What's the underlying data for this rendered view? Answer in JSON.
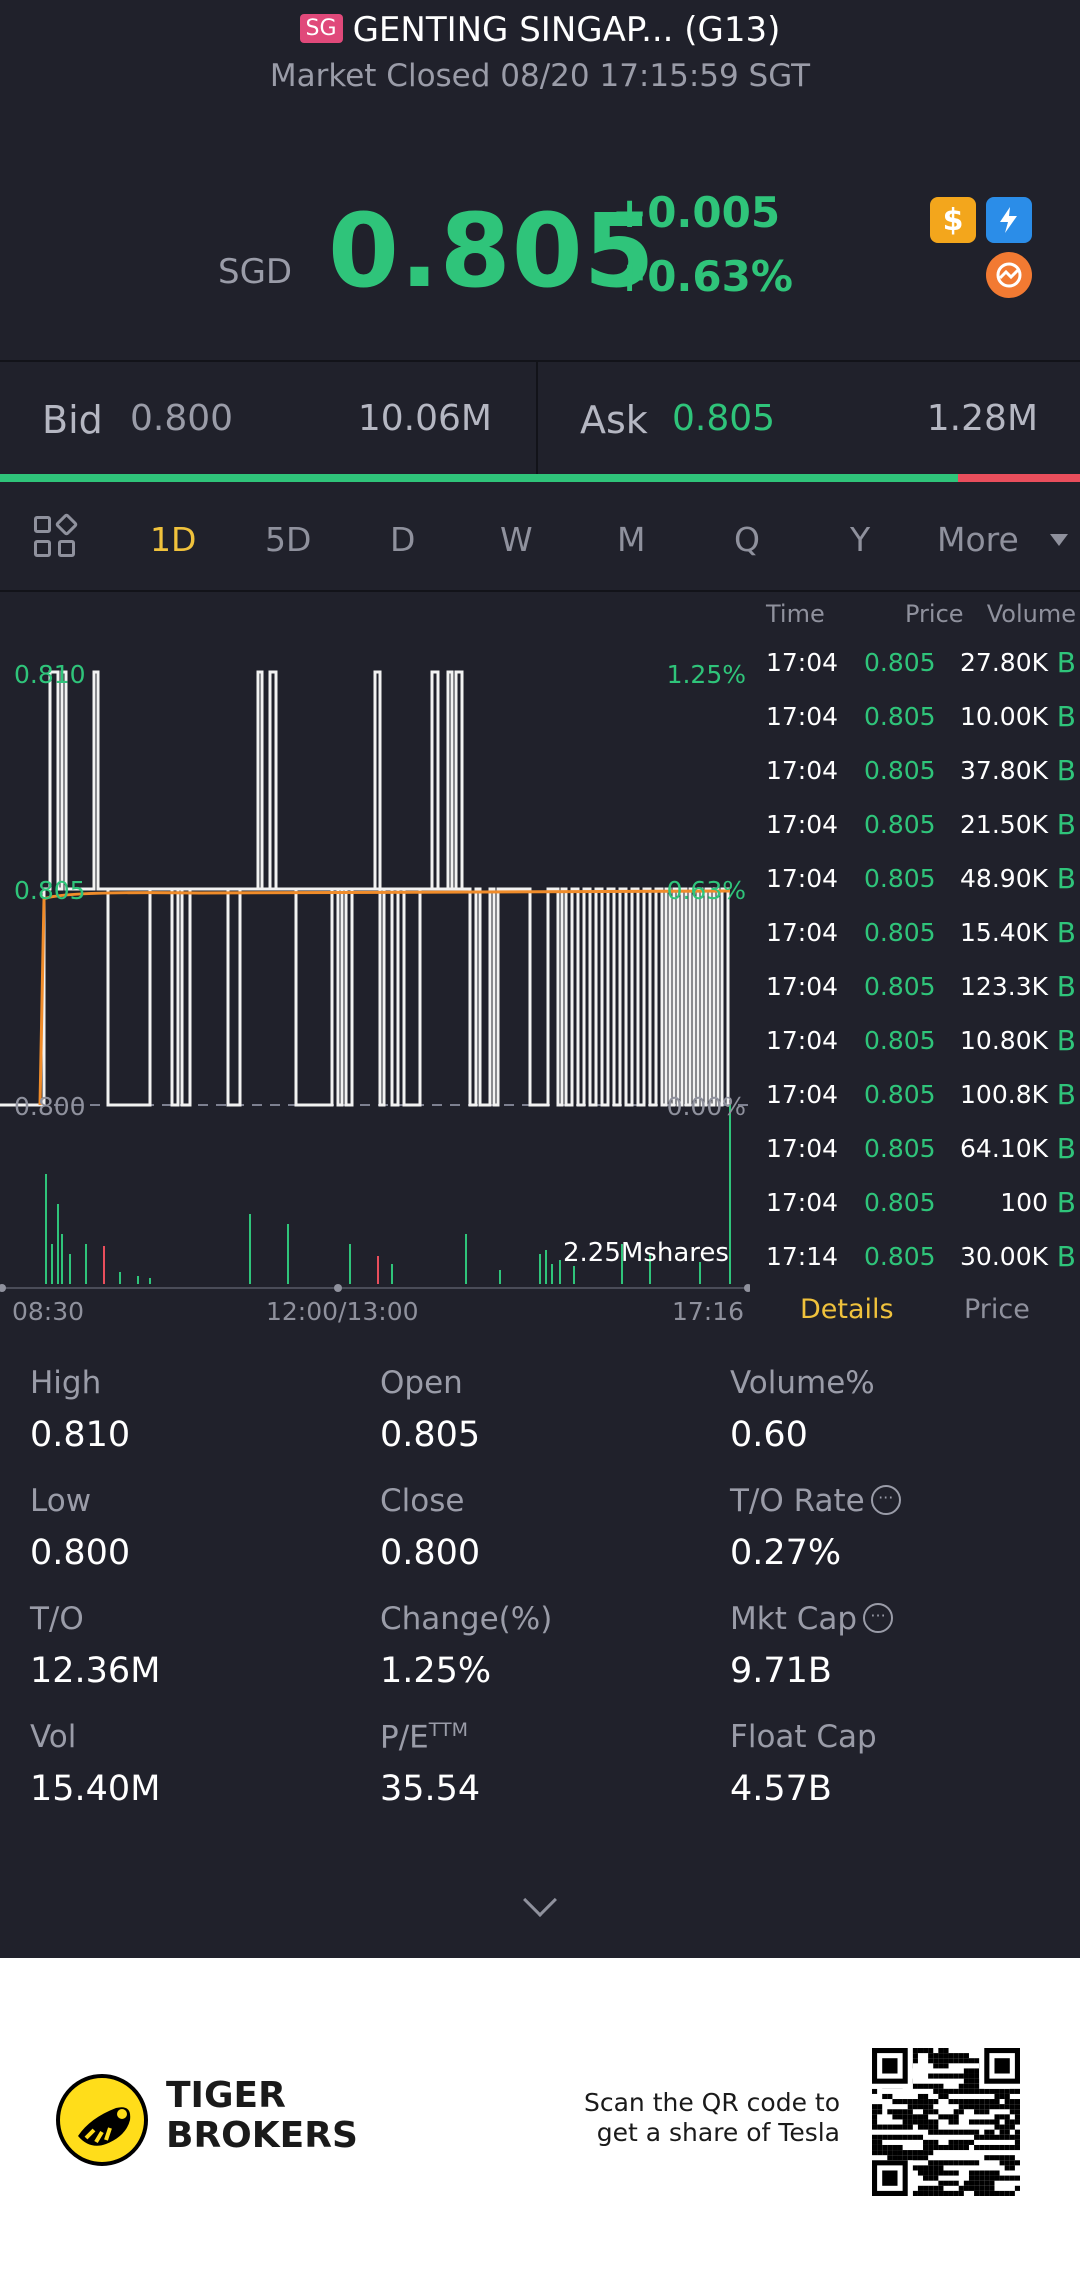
{
  "header": {
    "market_badge": "SG",
    "title": "GENTING SINGAP... (G13)",
    "status": "Market Closed 08/20 17:15:59 SGT"
  },
  "quote": {
    "currency": "SGD",
    "last_price": "0.805",
    "change_abs": "+0.005",
    "change_pct": "+0.63%",
    "price_color": "#2fc47a",
    "icons": [
      "dollar-icon",
      "lightning-level1-icon",
      "chart-badge-icon"
    ]
  },
  "bidask": {
    "bid_label": "Bid",
    "bid_price": "0.800",
    "bid_volume": "10.06M",
    "ask_label": "Ask",
    "ask_price": "0.805",
    "ask_volume": "1.28M",
    "bid_ratio": 0.887
  },
  "periods": {
    "tabs": [
      "1D",
      "5D",
      "D",
      "W",
      "M",
      "Q",
      "Y"
    ],
    "active": "1D",
    "more_label": "More"
  },
  "chart": {
    "y_left": [
      "0.810",
      "0.805",
      "0.800"
    ],
    "y_right": [
      "1.25%",
      "0.63%",
      "0.00%"
    ],
    "x_labels": [
      "08:30",
      "12:00/13:00",
      "17:16"
    ],
    "volume_label": "2.25Mshares"
  },
  "chart_data": {
    "type": "line",
    "ylim": [
      0.8,
      0.81
    ],
    "series": [],
    "volume_max": "2.25Mshares"
  },
  "ticks": {
    "headers": {
      "time": "Time",
      "price": "Price",
      "volume": "Volume"
    },
    "rows": [
      {
        "time": "17:04",
        "price": "0.805",
        "volume": "27.80K",
        "dir": "B"
      },
      {
        "time": "17:04",
        "price": "0.805",
        "volume": "10.00K",
        "dir": "B"
      },
      {
        "time": "17:04",
        "price": "0.805",
        "volume": "37.80K",
        "dir": "B"
      },
      {
        "time": "17:04",
        "price": "0.805",
        "volume": "21.50K",
        "dir": "B"
      },
      {
        "time": "17:04",
        "price": "0.805",
        "volume": "48.90K",
        "dir": "B"
      },
      {
        "time": "17:04",
        "price": "0.805",
        "volume": "15.40K",
        "dir": "B"
      },
      {
        "time": "17:04",
        "price": "0.805",
        "volume": "123.3K",
        "dir": "B"
      },
      {
        "time": "17:04",
        "price": "0.805",
        "volume": "10.80K",
        "dir": "B"
      },
      {
        "time": "17:04",
        "price": "0.805",
        "volume": "100.8K",
        "dir": "B"
      },
      {
        "time": "17:04",
        "price": "0.805",
        "volume": "64.10K",
        "dir": "B"
      },
      {
        "time": "17:04",
        "price": "0.805",
        "volume": "100",
        "dir": "B"
      },
      {
        "time": "17:14",
        "price": "0.805",
        "volume": "30.00K",
        "dir": "B"
      }
    ],
    "tab_details": "Details",
    "tab_price": "Price"
  },
  "stats": {
    "high_label": "High",
    "high": "0.810",
    "open_label": "Open",
    "open": "0.805",
    "volpct_label": "Volume%",
    "volpct": "0.60",
    "low_label": "Low",
    "low": "0.800",
    "close_label": "Close",
    "close": "0.800",
    "torate_label": "T/O Rate",
    "torate": "0.27%",
    "to_label": "T/O",
    "to": "12.36M",
    "changepct_label": "Change(%)",
    "changepct": "1.25%",
    "mktcap_label": "Mkt Cap",
    "mktcap": "9.71B",
    "vol_label": "Vol",
    "vol": "15.40M",
    "pe_label": "P/E",
    "pe_sup": "TTM",
    "pe": "35.54",
    "floatcap_label": "Float Cap",
    "floatcap": "4.57B"
  },
  "footer": {
    "brand_line1": "TIGER",
    "brand_line2": "BROKERS",
    "scan_line1": "Scan the QR code to",
    "scan_line2": "get a share of Tesla"
  }
}
